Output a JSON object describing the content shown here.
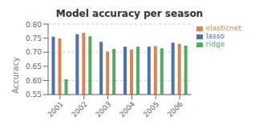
{
  "chart_data": {
    "type": "bar",
    "title": "Model accuracy per season",
    "ylabel": "Accuracy",
    "categories": [
      "2001",
      "2002",
      "2003",
      "2004",
      "2005",
      "2006"
    ],
    "series": [
      {
        "name": "lasso",
        "color": "#4c72b0",
        "values": [
          0.755,
          0.764,
          0.737,
          0.72,
          0.72,
          0.734
        ]
      },
      {
        "name": "elasticnet",
        "color": "#dd8452",
        "values": [
          0.749,
          0.769,
          0.703,
          0.71,
          0.722,
          0.73
        ]
      },
      {
        "name": "ridge",
        "color": "#55a868",
        "values": [
          0.604,
          0.757,
          0.712,
          0.72,
          0.714,
          0.723
        ]
      }
    ],
    "ylim": [
      0.55,
      0.8
    ],
    "yticks": [
      0.55,
      {
        "value": 0.6,
        "label": "0.60"
      },
      0.65,
      {
        "value": 0.7,
        "label": "0.70"
      },
      0.75,
      {
        "value": 0.8,
        "label": "0.80"
      }
    ],
    "grid": true,
    "legend": "upper right"
  }
}
